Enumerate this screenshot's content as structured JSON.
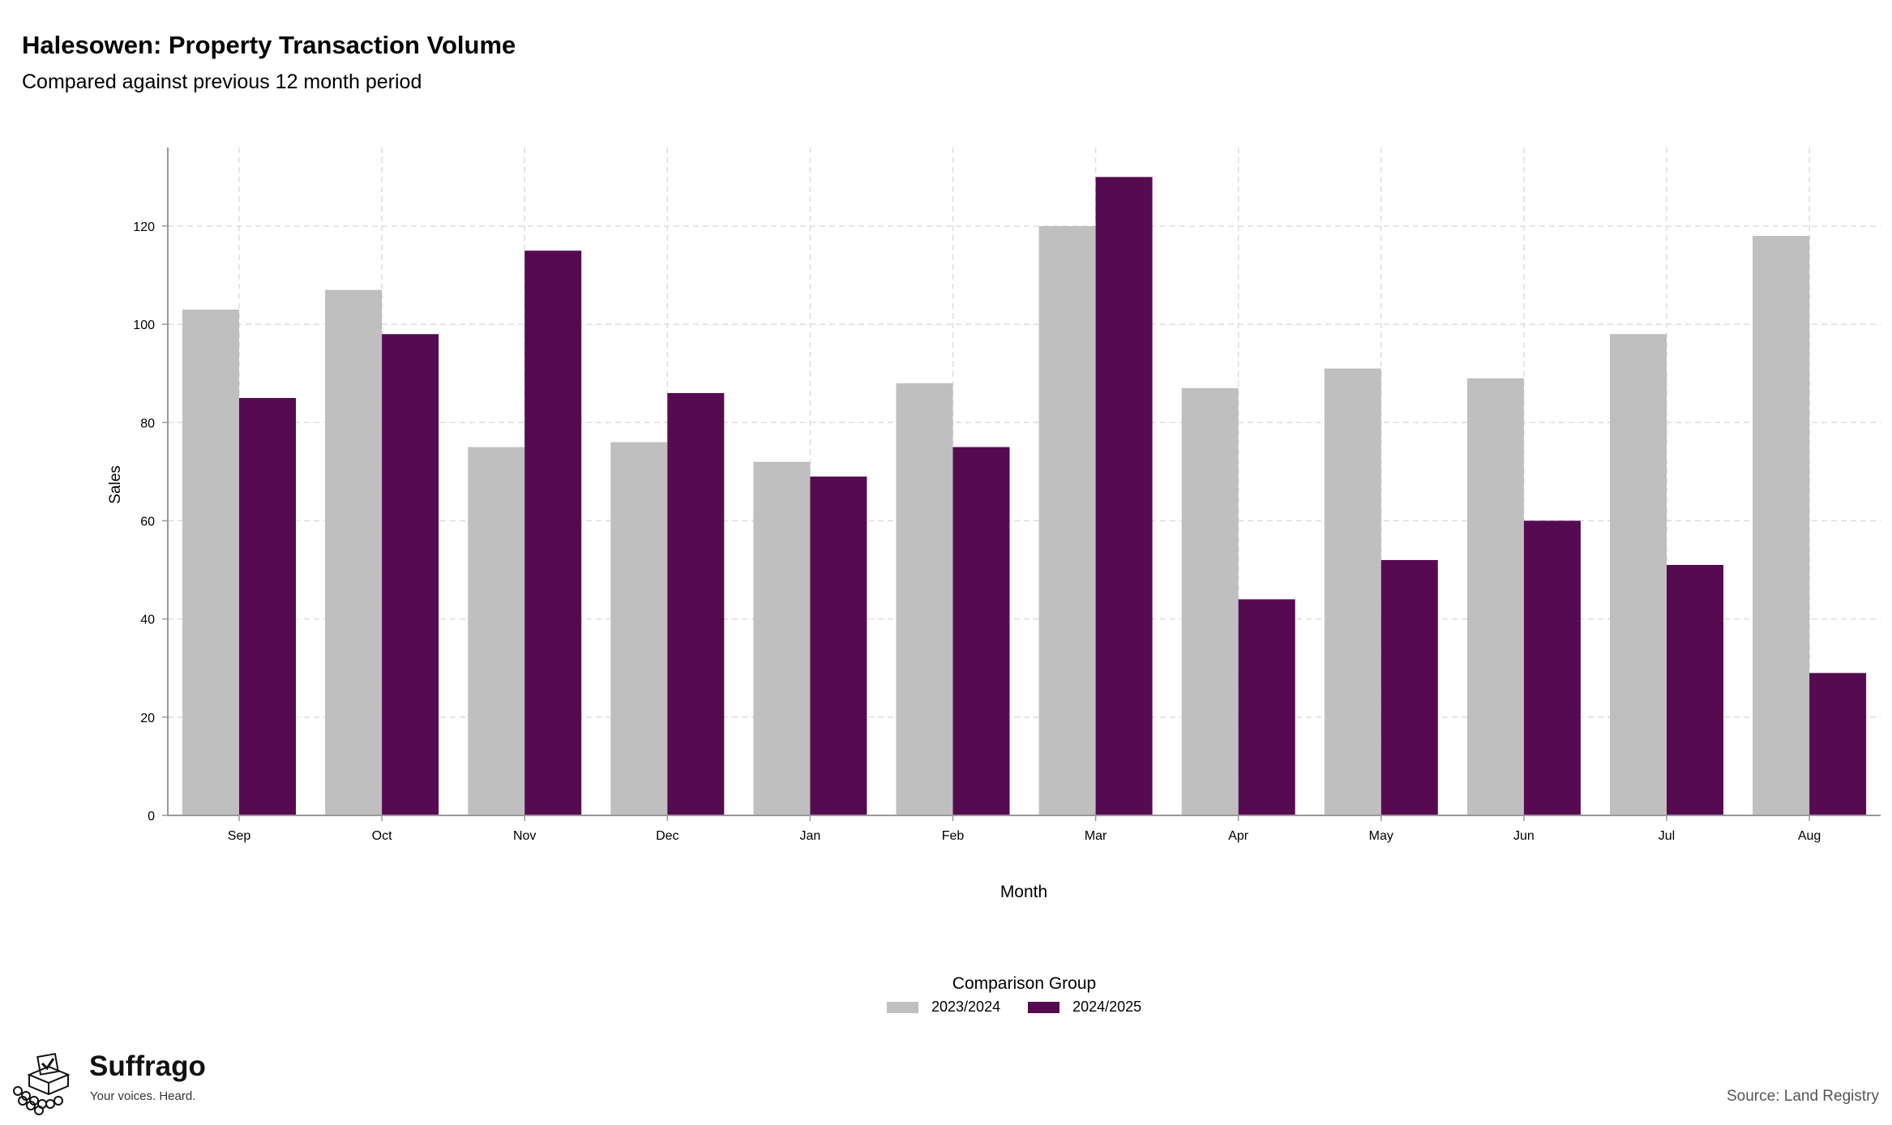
{
  "header": {
    "title": "Halesowen: Property Transaction Volume",
    "subtitle": "Compared against previous 12 month period"
  },
  "colors": {
    "series_2023": "#bfbfbf",
    "series_2024": "#560b51",
    "grid": "#dddddd",
    "axis": "#999999"
  },
  "chart_data": {
    "type": "bar",
    "title": "Halesowen: Property Transaction Volume",
    "subtitle": "Compared against previous 12 month period",
    "xlabel": "Month",
    "ylabel": "Sales",
    "ylim": [
      0,
      136
    ],
    "yticks": [
      0,
      20,
      40,
      60,
      80,
      100,
      120
    ],
    "grid": true,
    "legend_position": "bottom",
    "legend_title": "Comparison Group",
    "categories": [
      "Sep",
      "Oct",
      "Nov",
      "Dec",
      "Jan",
      "Feb",
      "Mar",
      "Apr",
      "May",
      "Jun",
      "Jul",
      "Aug"
    ],
    "series": [
      {
        "name": "2023/2024",
        "color": "#bfbfbf",
        "values": [
          103,
          107,
          75,
          76,
          72,
          88,
          120,
          87,
          91,
          89,
          98,
          118
        ]
      },
      {
        "name": "2024/2025",
        "color": "#560b51",
        "values": [
          85,
          98,
          115,
          86,
          69,
          75,
          130,
          44,
          52,
          60,
          51,
          29
        ]
      }
    ]
  },
  "footer": {
    "source": "Source: Land Registry",
    "brand_name": "Suffrago",
    "brand_tagline": "Your voices. Heard.",
    "logo_icon": "ballot-box-icon"
  }
}
